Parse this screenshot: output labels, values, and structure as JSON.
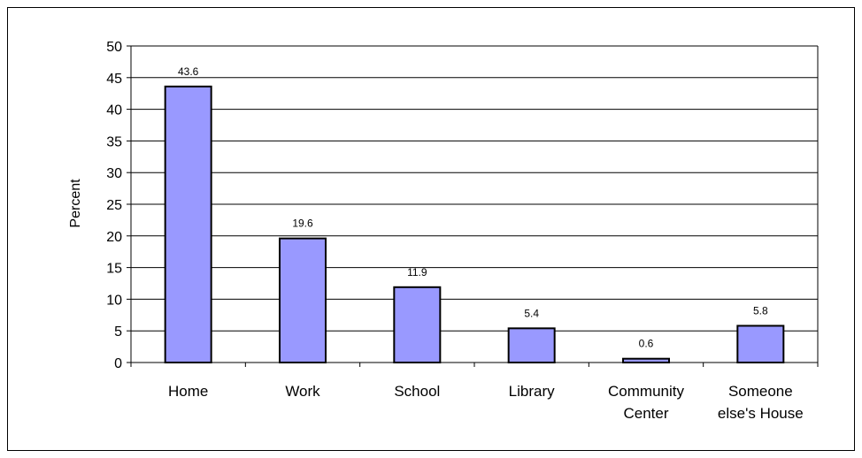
{
  "chart_data": {
    "type": "bar",
    "categories": [
      "Home",
      "Work",
      "School",
      "Library",
      "Community Center",
      "Someone else's House"
    ],
    "category_lines": [
      [
        "Home"
      ],
      [
        "Work"
      ],
      [
        "School"
      ],
      [
        "Library"
      ],
      [
        "Community",
        "Center"
      ],
      [
        "Someone",
        "else's House"
      ]
    ],
    "values": [
      43.6,
      19.6,
      11.9,
      5.4,
      0.6,
      5.8
    ],
    "data_labels": [
      "43.6",
      "19.6",
      "11.9",
      "5.4",
      "0.6",
      "5.8"
    ],
    "title": "",
    "xlabel": "",
    "ylabel": "Percent",
    "ylim": [
      0,
      50
    ],
    "yticks": [
      0,
      5,
      10,
      15,
      20,
      25,
      30,
      35,
      40,
      45,
      50
    ],
    "grid": true,
    "legend": "none",
    "colors": {
      "bar_fill": "#9999ff",
      "bar_stroke": "#000000",
      "grid": "#000000"
    }
  }
}
